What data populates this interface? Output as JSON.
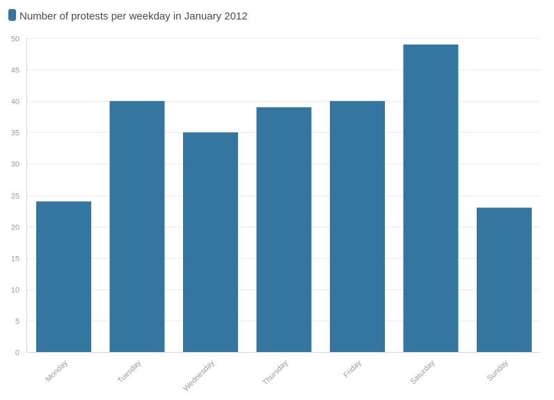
{
  "chart_data": {
    "type": "bar",
    "title": "",
    "xlabel": "",
    "ylabel": "",
    "categories": [
      "Monday",
      "Tuesday",
      "Wednesday",
      "Thursday",
      "Friday",
      "Saturday",
      "Sunday"
    ],
    "series": [
      {
        "name": "Number of protests per weekday in January 2012",
        "color": "#34769f",
        "values": [
          24,
          40,
          35,
          39,
          40,
          49,
          23
        ]
      }
    ],
    "ylim": [
      0,
      50
    ],
    "yticks": [
      0,
      5,
      10,
      15,
      20,
      25,
      30,
      35,
      40,
      45,
      50
    ],
    "grid": true,
    "legend_position": "top-left"
  }
}
